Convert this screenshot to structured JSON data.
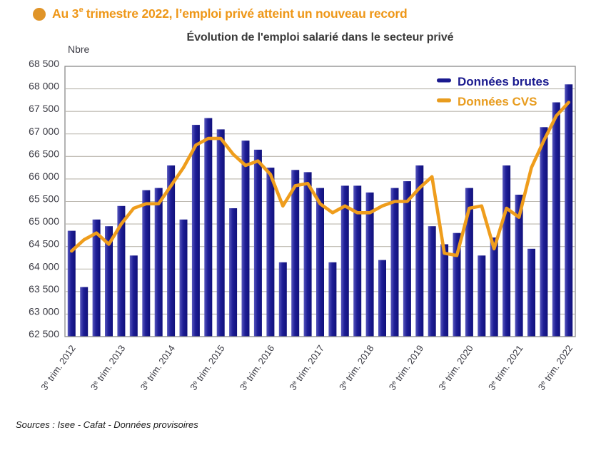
{
  "headline": {
    "text_pre": "Au 3",
    "text_sup": "e",
    "text_post": " trimestre 2022, l’emploi privé atteint un nouveau record"
  },
  "chart_title": "Évolution de l'emploi salarié dans le secteur privé",
  "y_unit_label": "Nbre",
  "source_note": "Sources : Isee - Cafat - Données provisoires",
  "legend": [
    {
      "label": "Données brutes",
      "color": "#1A1A8F"
    },
    {
      "label": "Données CVS",
      "color": "#E89C1E"
    }
  ],
  "colors": {
    "bar_light": "#5656BC",
    "bar_main": "#1E1E96",
    "bar_dark": "#10107A",
    "line": "#EF9D1C",
    "grid": "#BBB7AE",
    "frame": "#8A8A8A",
    "axis_text": "#3B3B44",
    "title_text": "#3A3A3A",
    "headline": "#EE9718",
    "bullet": "#E09428",
    "source_text": "#1C1C1C"
  },
  "chart_data": {
    "type": "bar",
    "title": "Évolution de l'emploi salarié dans le secteur privé",
    "ylabel": "Nbre",
    "ylim": [
      62500,
      68500
    ],
    "ytick_step": 500,
    "grid": true,
    "legend_position": "top-right-inside",
    "n_bars": 41,
    "x_note": "quarterly from 3e trim. 2012 to 3e trim. 2022, one label every 4 quarters",
    "x_tick_every": 4,
    "x_tick_labels": [
      "3e trim. 2012",
      "3e trim. 2013",
      "3e trim. 2014",
      "3e trim. 2015",
      "3e trim. 2016",
      "3e trim. 2017",
      "3e trim. 2018",
      "3e trim. 2019",
      "3e trim. 2020",
      "3e trim. 2021",
      "3e trim. 2022"
    ],
    "series": [
      {
        "name": "Données brutes",
        "type": "bar",
        "color": "#1E1E96",
        "values": [
          64850,
          63600,
          65100,
          64950,
          65400,
          64300,
          65750,
          65800,
          66300,
          65100,
          67200,
          67350,
          67100,
          65350,
          66850,
          66650,
          66250,
          64150,
          66200,
          66150,
          65800,
          64150,
          65850,
          65850,
          65700,
          64200,
          65800,
          65950,
          66300,
          64950,
          64550,
          64800,
          65800,
          64300,
          64700,
          66300,
          65650,
          64450,
          67150,
          67700,
          68100
        ]
      },
      {
        "name": "Données CVS",
        "type": "line",
        "color": "#EF9D1C",
        "values": [
          64400,
          64650,
          64800,
          64550,
          65000,
          65350,
          65450,
          65450,
          65850,
          66250,
          66750,
          66900,
          66900,
          66550,
          66300,
          66400,
          66100,
          65400,
          65850,
          65900,
          65450,
          65250,
          65400,
          65250,
          65250,
          65400,
          65500,
          65500,
          65800,
          66050,
          64350,
          64300,
          65350,
          65400,
          64450,
          65350,
          65150,
          66250,
          66850,
          67400,
          67700
        ]
      }
    ]
  }
}
